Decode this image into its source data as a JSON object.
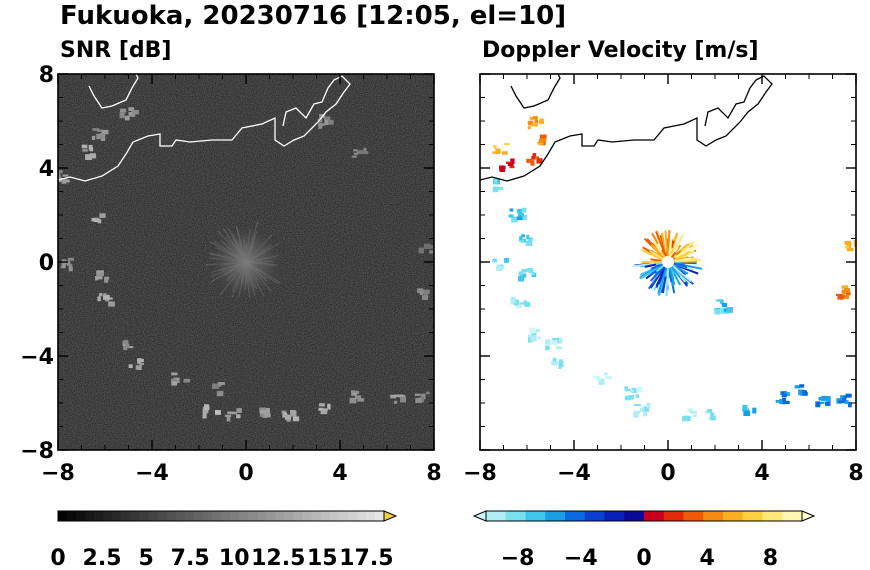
{
  "title": "Fukuoka, 20230716 [12:05, el=10]",
  "chart_data": [
    {
      "type": "heatmap",
      "title": "SNR [dB]",
      "xlim": [
        -8,
        8
      ],
      "ylim": [
        -8,
        8
      ],
      "x_ticks": [
        "−8",
        "−4",
        "0",
        "4",
        "8"
      ],
      "y_ticks": [
        "8",
        "4",
        "0",
        "−4",
        "−8"
      ],
      "x_tick_values": [
        -8,
        -4,
        0,
        4,
        8
      ],
      "y_tick_values": [
        8,
        4,
        0,
        -4,
        -8
      ],
      "background_color": "#1c1c1c",
      "colorbar": {
        "labels": [
          "0",
          "2.5",
          "5",
          "7.5",
          "10",
          "12.5",
          "15",
          "17.5"
        ],
        "label_values": [
          0,
          2.5,
          5,
          7.5,
          10,
          12.5,
          15,
          17.5
        ],
        "min": 0,
        "max": 18.5,
        "extend": "max",
        "extend_color": "#f4d03f",
        "colors_from": "#000000",
        "colors_to": "#e8e8e8"
      },
      "echo_clusters": [
        {
          "x": -7.9,
          "y": 3.7,
          "value": 12
        },
        {
          "x": -6.7,
          "y": 4.8,
          "value": 13
        },
        {
          "x": -6.3,
          "y": 5.5,
          "value": 11
        },
        {
          "x": -5.1,
          "y": 6.4,
          "value": 12
        },
        {
          "x": -6.5,
          "y": 2.0,
          "value": 14
        },
        {
          "x": -7.6,
          "y": 0.0,
          "value": 11
        },
        {
          "x": -6.3,
          "y": -0.5,
          "value": 12
        },
        {
          "x": -6.1,
          "y": -1.5,
          "value": 13
        },
        {
          "x": -5.1,
          "y": -3.4,
          "value": 12
        },
        {
          "x": -4.7,
          "y": -4.3,
          "value": 13
        },
        {
          "x": -2.9,
          "y": -4.9,
          "value": 12
        },
        {
          "x": -1.4,
          "y": -5.3,
          "value": 11
        },
        {
          "x": -1.6,
          "y": -6.2,
          "value": 14
        },
        {
          "x": -0.6,
          "y": -6.4,
          "value": 13
        },
        {
          "x": 0.6,
          "y": -6.3,
          "value": 12
        },
        {
          "x": 1.8,
          "y": -6.4,
          "value": 13
        },
        {
          "x": 3.3,
          "y": -6.1,
          "value": 14
        },
        {
          "x": 4.7,
          "y": -5.6,
          "value": 12
        },
        {
          "x": 6.4,
          "y": -5.8,
          "value": 12
        },
        {
          "x": 7.4,
          "y": -5.7,
          "value": 11
        },
        {
          "x": 7.3,
          "y": -1.2,
          "value": 11
        },
        {
          "x": 7.6,
          "y": 0.7,
          "value": 10
        },
        {
          "x": 4.8,
          "y": 4.7,
          "value": 10
        },
        {
          "x": 3.2,
          "y": 6.1,
          "value": 11
        }
      ]
    },
    {
      "type": "heatmap",
      "title": "Doppler Velocity [m/s]",
      "xlim": [
        -8,
        8
      ],
      "ylim": [
        -8,
        8
      ],
      "x_ticks": [
        "−8",
        "−4",
        "0",
        "4",
        "8"
      ],
      "y_ticks": [
        "8",
        "4",
        "0",
        "−4",
        "−8"
      ],
      "x_tick_values": [
        -8,
        -4,
        0,
        4,
        8
      ],
      "y_tick_values": [
        8,
        4,
        0,
        -4,
        -8
      ],
      "background_color": "#ffffff",
      "colorbar": {
        "labels": [
          "−8",
          "−4",
          "0",
          "4",
          "8"
        ],
        "label_values": [
          -8,
          -4,
          0,
          4,
          8
        ],
        "min": -10,
        "max": 10,
        "extend": "both",
        "extend_low_color": "#c8f8f8",
        "extend_high_color": "#fffdd6",
        "colors": [
          "#b0eef4",
          "#78e0ee",
          "#3cc8ec",
          "#1a9ee6",
          "#0b6ae0",
          "#0a3fd2",
          "#0a1fb8",
          "#0a0a96",
          "#c8001e",
          "#e02a0a",
          "#ee5a0a",
          "#f48a10",
          "#f8b020",
          "#fad040",
          "#fce878",
          "#fef6b0"
        ]
      },
      "echo_clusters": [
        {
          "x": -7.2,
          "y": 4.9,
          "value": 6
        },
        {
          "x": -5.7,
          "y": 6.0,
          "value": 5
        },
        {
          "x": -5.6,
          "y": 5.3,
          "value": 4
        },
        {
          "x": -5.8,
          "y": 4.5,
          "value": 2
        },
        {
          "x": -6.9,
          "y": 4.2,
          "value": 1
        },
        {
          "x": -7.5,
          "y": 3.4,
          "value": -7
        },
        {
          "x": -6.5,
          "y": 2.1,
          "value": -7
        },
        {
          "x": -6.1,
          "y": 1.0,
          "value": -7
        },
        {
          "x": -7.2,
          "y": 0.0,
          "value": -8
        },
        {
          "x": -6.1,
          "y": -0.4,
          "value": -7
        },
        {
          "x": -6.4,
          "y": -1.6,
          "value": -9
        },
        {
          "x": -5.7,
          "y": -3.0,
          "value": -9
        },
        {
          "x": -5.0,
          "y": -3.4,
          "value": -9
        },
        {
          "x": -4.8,
          "y": -4.2,
          "value": -9
        },
        {
          "x": -2.9,
          "y": -4.9,
          "value": -10
        },
        {
          "x": -1.6,
          "y": -5.5,
          "value": -9
        },
        {
          "x": -1.2,
          "y": -6.2,
          "value": -9
        },
        {
          "x": 0.8,
          "y": -6.4,
          "value": -9
        },
        {
          "x": 1.8,
          "y": -6.4,
          "value": -9
        },
        {
          "x": 3.3,
          "y": -6.2,
          "value": -7
        },
        {
          "x": 4.8,
          "y": -5.7,
          "value": -5
        },
        {
          "x": 5.5,
          "y": -5.4,
          "value": -5
        },
        {
          "x": 6.5,
          "y": -5.8,
          "value": -5
        },
        {
          "x": 7.4,
          "y": -5.8,
          "value": -5
        },
        {
          "x": 7.3,
          "y": -1.2,
          "value": 4
        },
        {
          "x": 7.8,
          "y": 0.8,
          "value": 6
        },
        {
          "x": 2.2,
          "y": -1.8,
          "value": -7
        }
      ]
    }
  ]
}
